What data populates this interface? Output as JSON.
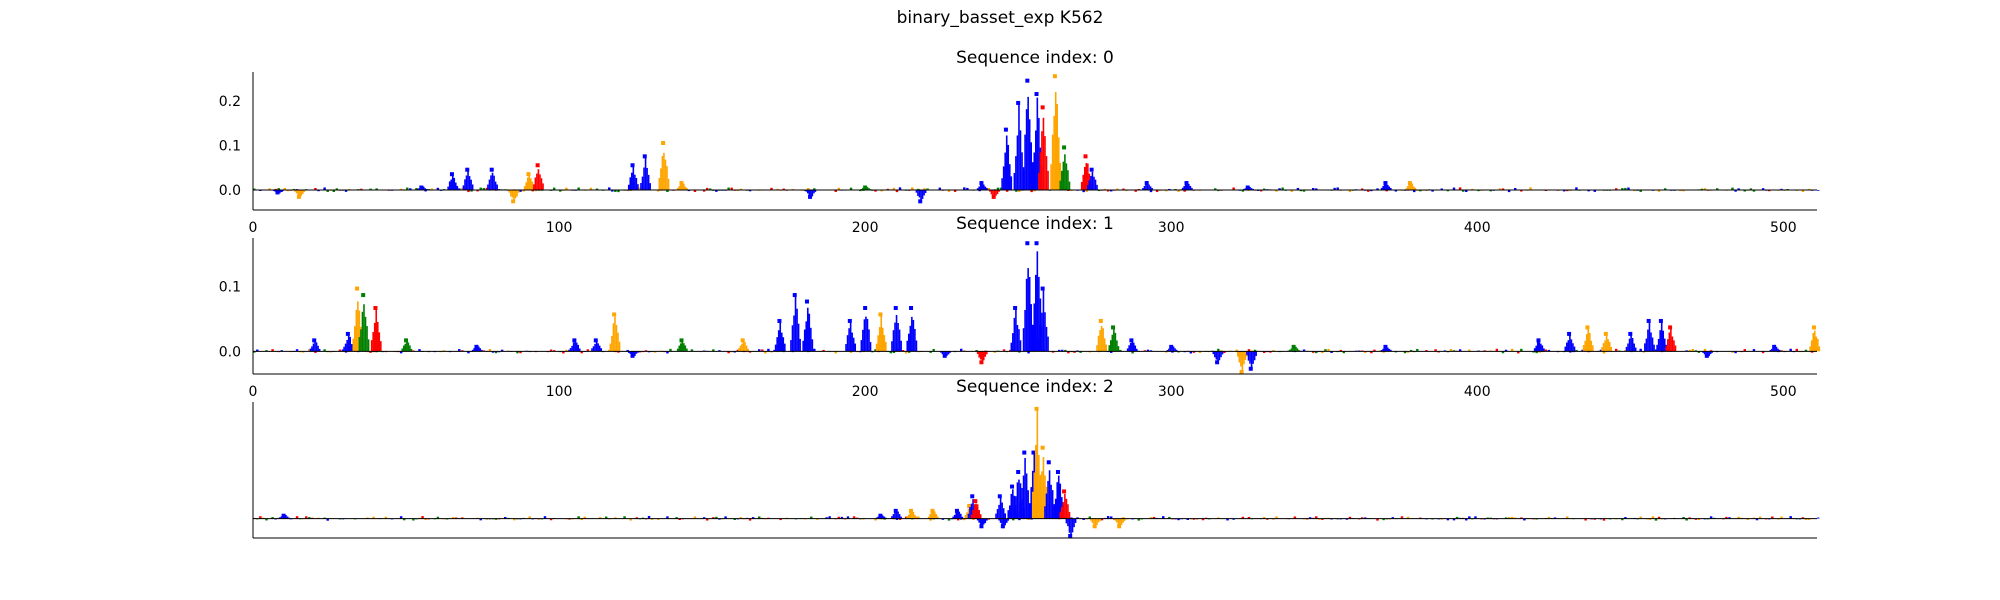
{
  "title": "binary_basset_exp K562",
  "colors": {
    "A": "#008000",
    "C": "#0000ff",
    "G": "#ffa500",
    "T": "#ff0000",
    "axis": "#000000"
  },
  "chart_data": [
    {
      "type": "sequence-logo",
      "title": "Sequence index: 0",
      "xlim": [
        0,
        511
      ],
      "ylim": [
        -0.045,
        0.265
      ],
      "xticks": [
        "0",
        "100",
        "200",
        "300",
        "400",
        "500"
      ],
      "yticks": [
        "0.0",
        "0.1",
        "0.2"
      ],
      "grid": false,
      "peaks": [
        {
          "x": 8,
          "value": -0.01,
          "base": "C"
        },
        {
          "x": 15,
          "value": -0.02,
          "base": "G"
        },
        {
          "x": 55,
          "value": 0.01,
          "base": "C"
        },
        {
          "x": 65,
          "value": 0.04,
          "base": "C"
        },
        {
          "x": 70,
          "value": 0.05,
          "base": "C"
        },
        {
          "x": 78,
          "value": 0.05,
          "base": "C"
        },
        {
          "x": 85,
          "value": -0.03,
          "base": "G"
        },
        {
          "x": 90,
          "value": 0.04,
          "base": "G"
        },
        {
          "x": 93,
          "value": 0.06,
          "base": "T"
        },
        {
          "x": 124,
          "value": 0.06,
          "base": "C"
        },
        {
          "x": 128,
          "value": 0.08,
          "base": "C"
        },
        {
          "x": 134,
          "value": 0.11,
          "base": "G"
        },
        {
          "x": 140,
          "value": 0.02,
          "base": "G"
        },
        {
          "x": 182,
          "value": -0.02,
          "base": "C"
        },
        {
          "x": 200,
          "value": 0.01,
          "base": "A"
        },
        {
          "x": 218,
          "value": -0.03,
          "base": "C"
        },
        {
          "x": 238,
          "value": 0.02,
          "base": "C"
        },
        {
          "x": 242,
          "value": -0.02,
          "base": "T"
        },
        {
          "x": 246,
          "value": 0.14,
          "base": "C"
        },
        {
          "x": 250,
          "value": 0.2,
          "base": "C"
        },
        {
          "x": 253,
          "value": 0.25,
          "base": "C"
        },
        {
          "x": 256,
          "value": 0.22,
          "base": "C"
        },
        {
          "x": 258,
          "value": 0.19,
          "base": "T"
        },
        {
          "x": 262,
          "value": 0.26,
          "base": "G"
        },
        {
          "x": 265,
          "value": 0.1,
          "base": "A"
        },
        {
          "x": 272,
          "value": 0.08,
          "base": "T"
        },
        {
          "x": 274,
          "value": 0.05,
          "base": "C"
        },
        {
          "x": 292,
          "value": 0.02,
          "base": "C"
        },
        {
          "x": 305,
          "value": 0.02,
          "base": "C"
        },
        {
          "x": 325,
          "value": 0.01,
          "base": "C"
        },
        {
          "x": 370,
          "value": 0.02,
          "base": "C"
        },
        {
          "x": 378,
          "value": 0.02,
          "base": "G"
        }
      ]
    },
    {
      "type": "sequence-logo",
      "title": "Sequence index: 1",
      "xlim": [
        0,
        511
      ],
      "ylim": [
        -0.035,
        0.175
      ],
      "xticks": [
        "0",
        "100",
        "200",
        "300",
        "400",
        "500"
      ],
      "yticks": [
        "0.0",
        "0.1"
      ],
      "grid": false,
      "peaks": [
        {
          "x": 20,
          "value": 0.02,
          "base": "C"
        },
        {
          "x": 31,
          "value": 0.03,
          "base": "C"
        },
        {
          "x": 34,
          "value": 0.1,
          "base": "G"
        },
        {
          "x": 36,
          "value": 0.09,
          "base": "A"
        },
        {
          "x": 40,
          "value": 0.07,
          "base": "T"
        },
        {
          "x": 50,
          "value": 0.02,
          "base": "A"
        },
        {
          "x": 73,
          "value": 0.01,
          "base": "C"
        },
        {
          "x": 105,
          "value": 0.02,
          "base": "C"
        },
        {
          "x": 112,
          "value": 0.02,
          "base": "C"
        },
        {
          "x": 118,
          "value": 0.06,
          "base": "G"
        },
        {
          "x": 124,
          "value": -0.01,
          "base": "C"
        },
        {
          "x": 140,
          "value": 0.02,
          "base": "A"
        },
        {
          "x": 160,
          "value": 0.02,
          "base": "G"
        },
        {
          "x": 172,
          "value": 0.05,
          "base": "C"
        },
        {
          "x": 177,
          "value": 0.09,
          "base": "C"
        },
        {
          "x": 181,
          "value": 0.08,
          "base": "C"
        },
        {
          "x": 195,
          "value": 0.05,
          "base": "C"
        },
        {
          "x": 200,
          "value": 0.07,
          "base": "C"
        },
        {
          "x": 205,
          "value": 0.06,
          "base": "G"
        },
        {
          "x": 210,
          "value": 0.07,
          "base": "C"
        },
        {
          "x": 215,
          "value": 0.07,
          "base": "C"
        },
        {
          "x": 226,
          "value": -0.01,
          "base": "C"
        },
        {
          "x": 238,
          "value": -0.02,
          "base": "T"
        },
        {
          "x": 249,
          "value": 0.07,
          "base": "C"
        },
        {
          "x": 253,
          "value": 0.17,
          "base": "C"
        },
        {
          "x": 256,
          "value": 0.17,
          "base": "C"
        },
        {
          "x": 258,
          "value": 0.1,
          "base": "C"
        },
        {
          "x": 277,
          "value": 0.05,
          "base": "G"
        },
        {
          "x": 281,
          "value": 0.04,
          "base": "A"
        },
        {
          "x": 287,
          "value": 0.02,
          "base": "C"
        },
        {
          "x": 300,
          "value": 0.01,
          "base": "C"
        },
        {
          "x": 315,
          "value": -0.02,
          "base": "C"
        },
        {
          "x": 323,
          "value": -0.035,
          "base": "G"
        },
        {
          "x": 326,
          "value": -0.03,
          "base": "C"
        },
        {
          "x": 340,
          "value": 0.01,
          "base": "A"
        },
        {
          "x": 370,
          "value": 0.01,
          "base": "C"
        },
        {
          "x": 420,
          "value": 0.02,
          "base": "C"
        },
        {
          "x": 430,
          "value": 0.03,
          "base": "C"
        },
        {
          "x": 436,
          "value": 0.04,
          "base": "G"
        },
        {
          "x": 442,
          "value": 0.03,
          "base": "G"
        },
        {
          "x": 450,
          "value": 0.03,
          "base": "C"
        },
        {
          "x": 456,
          "value": 0.05,
          "base": "C"
        },
        {
          "x": 460,
          "value": 0.05,
          "base": "C"
        },
        {
          "x": 463,
          "value": 0.04,
          "base": "T"
        },
        {
          "x": 475,
          "value": -0.01,
          "base": "C"
        },
        {
          "x": 497,
          "value": 0.01,
          "base": "C"
        },
        {
          "x": 510,
          "value": 0.04,
          "base": "G"
        }
      ]
    },
    {
      "type": "sequence-logo",
      "title": "Sequence index: 2",
      "xlim": [
        0,
        511
      ],
      "ylim": [
        -0.04,
        0.24
      ],
      "xticks": [],
      "yticks": [],
      "grid": false,
      "peaks": [
        {
          "x": 10,
          "value": 0.01,
          "base": "C"
        },
        {
          "x": 205,
          "value": 0.01,
          "base": "C"
        },
        {
          "x": 210,
          "value": 0.02,
          "base": "C"
        },
        {
          "x": 215,
          "value": 0.02,
          "base": "G"
        },
        {
          "x": 222,
          "value": 0.02,
          "base": "G"
        },
        {
          "x": 230,
          "value": 0.02,
          "base": "C"
        },
        {
          "x": 236,
          "value": 0.02,
          "base": "C"
        },
        {
          "x": 238,
          "value": -0.02,
          "base": "C"
        },
        {
          "x": 234,
          "value": 0.03,
          "base": "G"
        },
        {
          "x": 235,
          "value": 0.05,
          "base": "C"
        },
        {
          "x": 236,
          "value": 0.04,
          "base": "T"
        },
        {
          "x": 244,
          "value": 0.05,
          "base": "C"
        },
        {
          "x": 248,
          "value": 0.07,
          "base": "C"
        },
        {
          "x": 250,
          "value": 0.1,
          "base": "C"
        },
        {
          "x": 252,
          "value": 0.14,
          "base": "C"
        },
        {
          "x": 255,
          "value": 0.14,
          "base": "C"
        },
        {
          "x": 256,
          "value": 0.23,
          "base": "G"
        },
        {
          "x": 258,
          "value": 0.15,
          "base": "G"
        },
        {
          "x": 260,
          "value": 0.12,
          "base": "C"
        },
        {
          "x": 263,
          "value": 0.1,
          "base": "C"
        },
        {
          "x": 265,
          "value": 0.06,
          "base": "T"
        },
        {
          "x": 245,
          "value": -0.02,
          "base": "C"
        },
        {
          "x": 267,
          "value": -0.04,
          "base": "C"
        },
        {
          "x": 275,
          "value": -0.02,
          "base": "G"
        },
        {
          "x": 283,
          "value": -0.02,
          "base": "G"
        }
      ]
    }
  ]
}
